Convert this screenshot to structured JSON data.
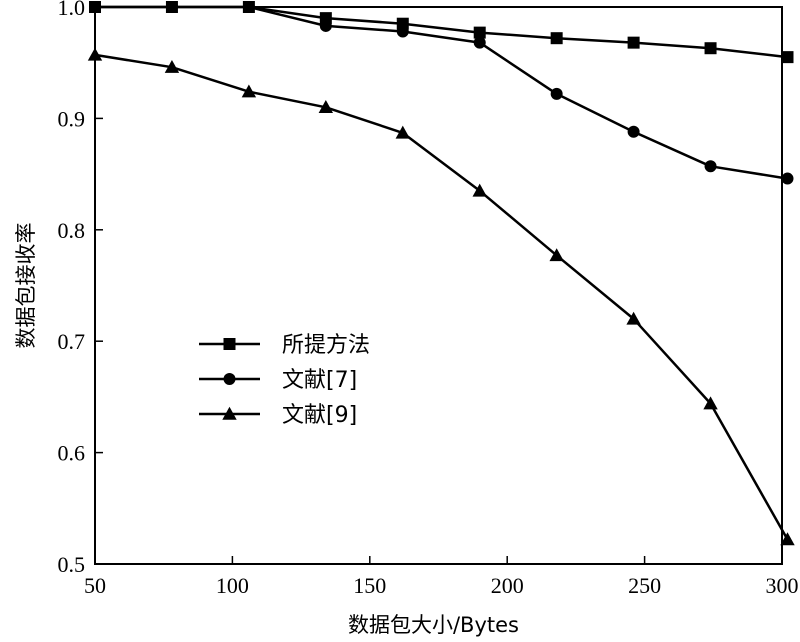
{
  "chart_data": {
    "type": "line",
    "xlabel": "数据包大小/Bytes",
    "ylabel": "数据包接收率",
    "xlim": [
      50,
      300
    ],
    "ylim": [
      0.5,
      1.0
    ],
    "x_ticks": [
      50,
      100,
      150,
      200,
      250,
      300
    ],
    "y_ticks": [
      "0.5",
      "0.6",
      "0.7",
      "0.8",
      "0.9",
      "1.0"
    ],
    "grid": false,
    "legend_position": "center-left",
    "x": [
      50,
      78,
      106,
      134,
      162,
      190,
      218,
      246,
      274,
      302
    ],
    "series": [
      {
        "name": "所提方法",
        "marker": "square",
        "color": "#000000",
        "values": [
          1.0,
          1.0,
          1.0,
          0.99,
          0.985,
          0.977,
          0.972,
          0.968,
          0.963,
          0.955
        ]
      },
      {
        "name": "文献[7]",
        "marker": "circle",
        "color": "#000000",
        "values": [
          1.0,
          1.0,
          1.0,
          0.983,
          0.978,
          0.968,
          0.922,
          0.888,
          0.857,
          0.846
        ]
      },
      {
        "name": "文献[9]",
        "marker": "triangle",
        "color": "#000000",
        "values": [
          0.957,
          0.946,
          0.924,
          0.91,
          0.887,
          0.835,
          0.777,
          0.72,
          0.644,
          0.522
        ]
      }
    ]
  }
}
